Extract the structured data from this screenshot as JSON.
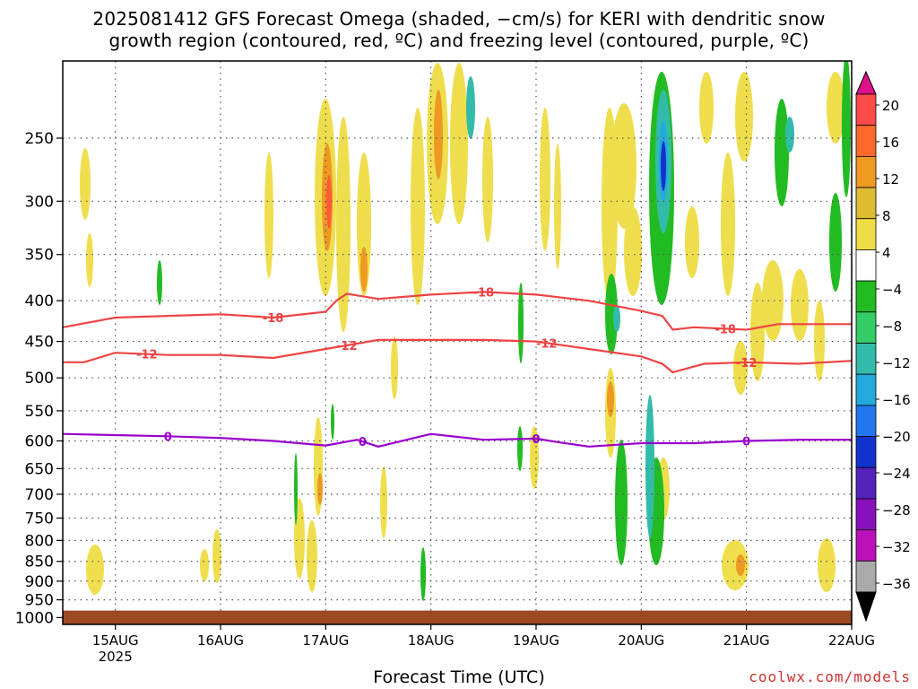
{
  "title_line1": "2025081412 GFS Forecast Omega (shaded, −cm/s) for KERI with dendritic snow",
  "title_line2": "growth region (contoured, red, ºC) and freezing level (contoured, purple, ºC)",
  "xlabel": "Forecast Time (UTC)",
  "credit": "coolwx.com/models",
  "colors": {
    "red_contour": "#ee4444",
    "purple_contour": "#9900cc",
    "ground": "#9b4a24",
    "grid": "#555555"
  },
  "chart_data": {
    "type": "heatmap",
    "xlabel": "Forecast Time (UTC)",
    "ylabel": "",
    "x_ticks": [
      {
        "label": "15AUG",
        "sublabel": "2025",
        "day": 0
      },
      {
        "label": "16AUG",
        "day": 1
      },
      {
        "label": "17AUG",
        "day": 2
      },
      {
        "label": "18AUG",
        "day": 3
      },
      {
        "label": "19AUG",
        "day": 4
      },
      {
        "label": "20AUG",
        "day": 5
      },
      {
        "label": "21AUG",
        "day": 6
      },
      {
        "label": "22AUG",
        "day": 7
      }
    ],
    "xlim_days": [
      -0.5,
      7
    ],
    "y_ticks": [
      250,
      300,
      350,
      400,
      450,
      500,
      550,
      600,
      650,
      700,
      750,
      800,
      850,
      900,
      950,
      1000
    ],
    "ylim_hpa": [
      200,
      1020
    ],
    "y_scale": "log pressure (inverted)",
    "grid": true,
    "colorbar": {
      "labels": [
        "20",
        "16",
        "12",
        "8",
        "4",
        "−4",
        "−8",
        "−12",
        "−16",
        "−20",
        "−24",
        "−28",
        "−32",
        "−36"
      ],
      "colors": [
        "#dd1188",
        "#ff4a4a",
        "#ff6a2a",
        "#ee9922",
        "#ddbb33",
        "#eedd44",
        "#ffffff",
        "#22bb22",
        "#33cc66",
        "#33bbaa",
        "#22aadd",
        "#2277ee",
        "#1133cc",
        "#5522bb",
        "#8811bb",
        "#bb11bb",
        "#aaaaaa",
        "#000000"
      ]
    },
    "series": [
      {
        "name": "-18",
        "color": "#ee4444",
        "points": [
          [
            -0.5,
            432
          ],
          [
            0,
            420
          ],
          [
            0.5,
            418
          ],
          [
            1,
            416
          ],
          [
            1.5,
            420
          ],
          [
            2,
            413
          ],
          [
            2.1,
            400
          ],
          [
            2.2,
            392
          ],
          [
            2.5,
            398
          ],
          [
            3,
            393
          ],
          [
            3.5,
            390
          ],
          [
            4,
            393
          ],
          [
            4.5,
            400
          ],
          [
            5,
            412
          ],
          [
            5.2,
            418
          ],
          [
            5.3,
            435
          ],
          [
            5.5,
            432
          ],
          [
            6,
            435
          ],
          [
            6.3,
            428
          ],
          [
            7,
            428
          ]
        ],
        "labels_at": [
          1.5,
          3.5,
          5.8
        ]
      },
      {
        "name": "-12",
        "color": "#ee4444",
        "points": [
          [
            -0.5,
            478
          ],
          [
            -0.3,
            478
          ],
          [
            0,
            465
          ],
          [
            0.5,
            468
          ],
          [
            1,
            468
          ],
          [
            1.5,
            472
          ],
          [
            2,
            460
          ],
          [
            2.5,
            448
          ],
          [
            3,
            448
          ],
          [
            3.5,
            448
          ],
          [
            4,
            450
          ],
          [
            4.5,
            460
          ],
          [
            5,
            470
          ],
          [
            5.2,
            480
          ],
          [
            5.3,
            492
          ],
          [
            5.6,
            480
          ],
          [
            6,
            478
          ],
          [
            6.5,
            480
          ],
          [
            7,
            476
          ]
        ],
        "labels_at": [
          0.3,
          2.2,
          4.1,
          6
        ]
      },
      {
        "name": "0",
        "color": "#9900cc",
        "points": [
          [
            -0.5,
            588
          ],
          [
            0,
            590
          ],
          [
            0.5,
            592
          ],
          [
            1,
            595
          ],
          [
            1.5,
            600
          ],
          [
            2,
            608
          ],
          [
            2.3,
            598
          ],
          [
            2.5,
            610
          ],
          [
            3,
            588
          ],
          [
            3.5,
            598
          ],
          [
            4,
            596
          ],
          [
            4.2,
            602
          ],
          [
            4.5,
            610
          ],
          [
            5,
            604
          ],
          [
            5.5,
            604
          ],
          [
            6,
            600
          ],
          [
            6.5,
            598
          ],
          [
            7,
            598
          ]
        ],
        "labels_at": [
          0.5,
          2.35,
          4,
          6
        ]
      }
    ],
    "ground_pressure_hpa": 980
  }
}
